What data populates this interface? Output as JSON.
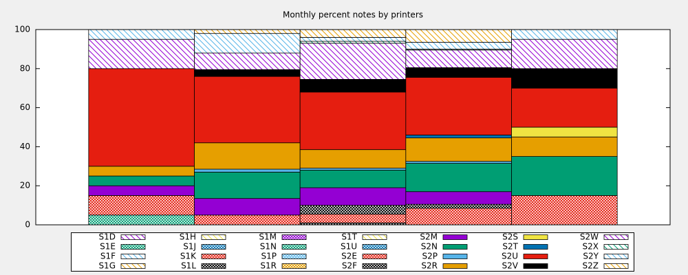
{
  "chart_data": {
    "type": "stacked-bar",
    "title": "Monthly percent notes by printers",
    "categories": [
      null,
      null,
      null,
      null,
      null
    ],
    "ylim": [
      0,
      100
    ],
    "yticks": [
      0,
      20,
      40,
      60,
      80,
      100
    ],
    "series": [
      {
        "name": "S1D",
        "color": "#9400d3",
        "pattern": "hatch",
        "values": [
          0,
          0,
          0,
          0,
          0
        ]
      },
      {
        "name": "S1E",
        "color": "#009e73",
        "pattern": "cross",
        "values": [
          5,
          0,
          0,
          0,
          0
        ]
      },
      {
        "name": "S1F",
        "color": "#56b4e9",
        "pattern": "hatch",
        "values": [
          0,
          0,
          0,
          0,
          0
        ]
      },
      {
        "name": "S1G",
        "color": "#e69f00",
        "pattern": "hatch",
        "values": [
          0,
          0,
          0,
          0,
          0
        ]
      },
      {
        "name": "S1H",
        "color": "#f0e442",
        "pattern": "hatch",
        "values": [
          0,
          0,
          0,
          0,
          0
        ]
      },
      {
        "name": "S1J",
        "color": "#0072b2",
        "pattern": "cross",
        "values": [
          0,
          0,
          0,
          0,
          0
        ]
      },
      {
        "name": "S1K",
        "color": "#e51e10",
        "pattern": "cross",
        "values": [
          10,
          5,
          0,
          0,
          0
        ]
      },
      {
        "name": "S1L",
        "color": "#000000",
        "pattern": "cross",
        "values": [
          0,
          0,
          1,
          0,
          0
        ]
      },
      {
        "name": "S1M",
        "color": "#9400d3",
        "pattern": "cross",
        "values": [
          0,
          0,
          0,
          0,
          0
        ]
      },
      {
        "name": "S1N",
        "color": "#009e73",
        "pattern": "cross",
        "values": [
          0,
          0,
          0,
          0,
          0
        ]
      },
      {
        "name": "S1P",
        "color": "#56b4e9",
        "pattern": "cross",
        "values": [
          0,
          0,
          0,
          0,
          0
        ]
      },
      {
        "name": "S1R",
        "color": "#e69f00",
        "pattern": "cross",
        "values": [
          0,
          0,
          0,
          0,
          0
        ]
      },
      {
        "name": "S1T",
        "color": "#f0e442",
        "pattern": "hatch",
        "values": [
          0,
          0,
          0,
          0,
          0
        ]
      },
      {
        "name": "S1U",
        "color": "#0072b2",
        "pattern": "cross",
        "values": [
          0,
          0,
          0,
          0,
          0
        ]
      },
      {
        "name": "S2E",
        "color": "#e51e10",
        "pattern": "cross",
        "values": [
          0,
          0,
          4.5,
          8.5,
          15
        ]
      },
      {
        "name": "S2F",
        "color": "#000000",
        "pattern": "cross",
        "values": [
          0,
          0,
          4.5,
          2,
          0
        ]
      },
      {
        "name": "S2M",
        "color": "#9400d3",
        "pattern": "solid",
        "values": [
          5,
          8.5,
          9,
          6.5,
          0
        ]
      },
      {
        "name": "S2N",
        "color": "#009e73",
        "pattern": "solid",
        "values": [
          5,
          13.5,
          9,
          14.5,
          20
        ]
      },
      {
        "name": "S2P",
        "color": "#56b4e9",
        "pattern": "solid",
        "values": [
          0,
          1.5,
          1,
          1,
          0
        ]
      },
      {
        "name": "S2R",
        "color": "#e69f00",
        "pattern": "solid",
        "values": [
          5,
          13.5,
          9.5,
          12,
          10
        ]
      },
      {
        "name": "S2S",
        "color": "#f0e442",
        "pattern": "solid",
        "values": [
          0,
          0,
          0,
          0,
          5
        ]
      },
      {
        "name": "S2T",
        "color": "#0072b2",
        "pattern": "solid",
        "values": [
          0,
          0,
          0,
          1.5,
          0
        ]
      },
      {
        "name": "S2U",
        "color": "#e51e10",
        "pattern": "solid",
        "values": [
          50,
          34,
          29.5,
          29.5,
          20
        ]
      },
      {
        "name": "S2V",
        "color": "#000000",
        "pattern": "solid",
        "values": [
          0,
          3.5,
          6.5,
          5,
          10
        ]
      },
      {
        "name": "S2W",
        "color": "#9400d3",
        "pattern": "hatch",
        "values": [
          15,
          8.5,
          18.5,
          9,
          15
        ]
      },
      {
        "name": "S2X",
        "color": "#009e73",
        "pattern": "hatch",
        "values": [
          0,
          0,
          1,
          0.5,
          0
        ]
      },
      {
        "name": "S2Y",
        "color": "#56b4e9",
        "pattern": "hatch",
        "values": [
          5,
          10,
          2,
          3.5,
          5
        ]
      },
      {
        "name": "S2Z",
        "color": "#e69f00",
        "pattern": "hatch",
        "values": [
          0,
          2,
          4,
          6.5,
          0
        ]
      }
    ]
  }
}
